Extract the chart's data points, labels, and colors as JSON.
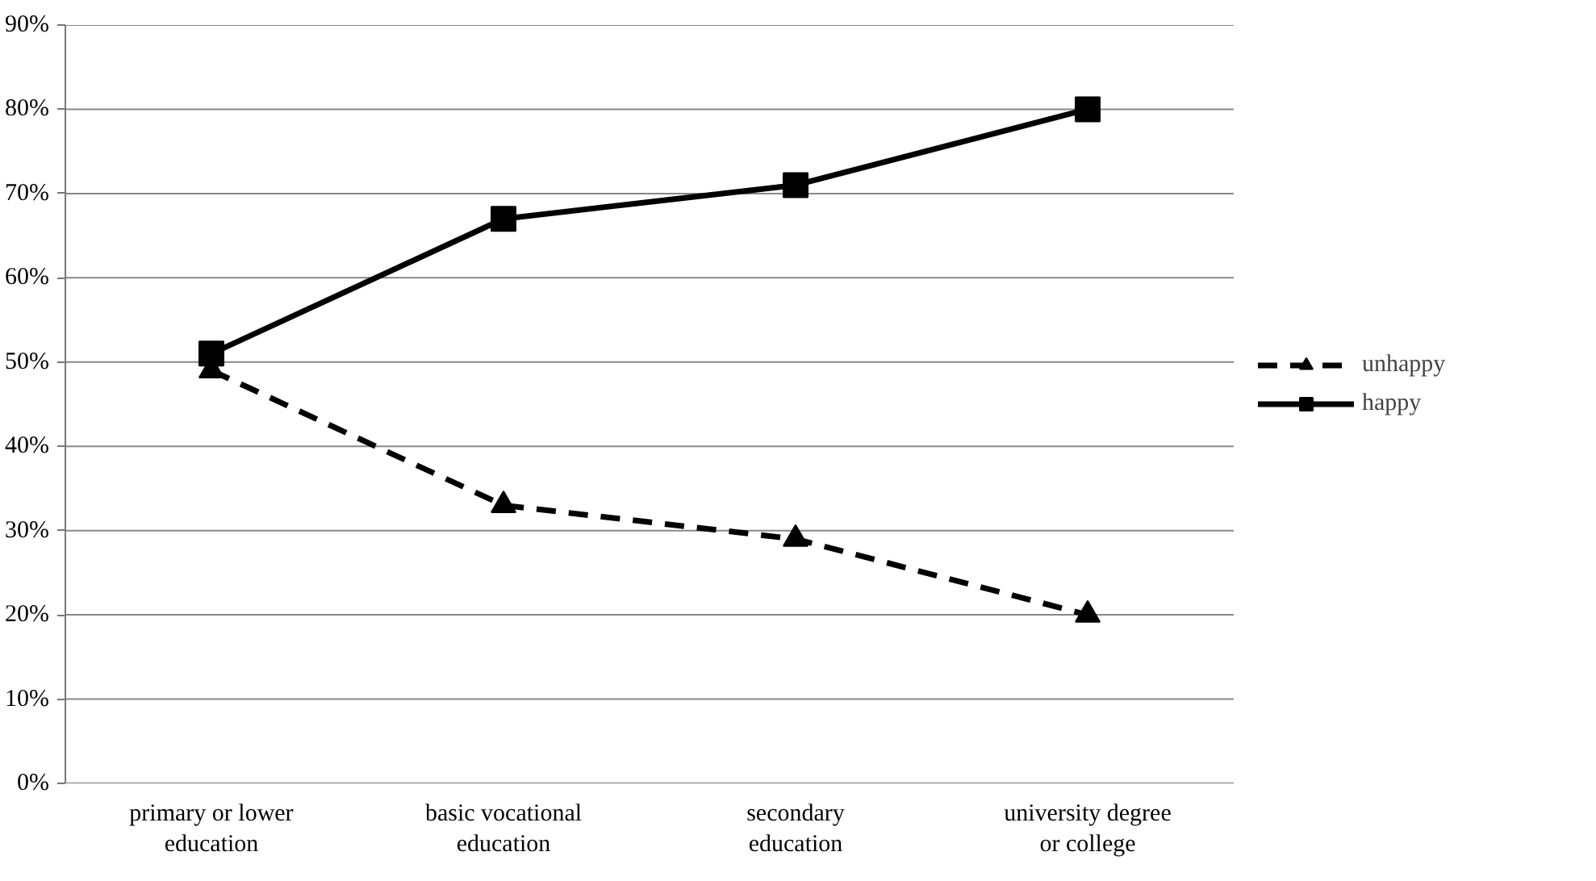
{
  "chart_data": {
    "type": "line",
    "categories": [
      "primary or lower education",
      "basic vocational education",
      "secondary education",
      "university degree or college"
    ],
    "series": [
      {
        "name": "unhappy",
        "color": "#000000",
        "values": [
          49,
          33,
          29,
          20
        ],
        "marker": "triangle",
        "line_style": "dashed"
      },
      {
        "name": "happy",
        "color": "#000000",
        "values": [
          51,
          67,
          71,
          80
        ],
        "marker": "square",
        "line_style": "solid"
      }
    ],
    "ylim": [
      0,
      90
    ],
    "yticks": [
      {
        "value": 0,
        "label": "0%"
      },
      {
        "value": 10,
        "label": "10%"
      },
      {
        "value": 20,
        "label": "20%"
      },
      {
        "value": 30,
        "label": "30%"
      },
      {
        "value": 40,
        "label": "40%"
      },
      {
        "value": 50,
        "label": "50%"
      },
      {
        "value": 60,
        "label": "60%"
      },
      {
        "value": 70,
        "label": "70%"
      },
      {
        "value": 80,
        "label": "80%"
      },
      {
        "value": 90,
        "label": "90%"
      }
    ],
    "grid": "y",
    "legend": "right"
  }
}
